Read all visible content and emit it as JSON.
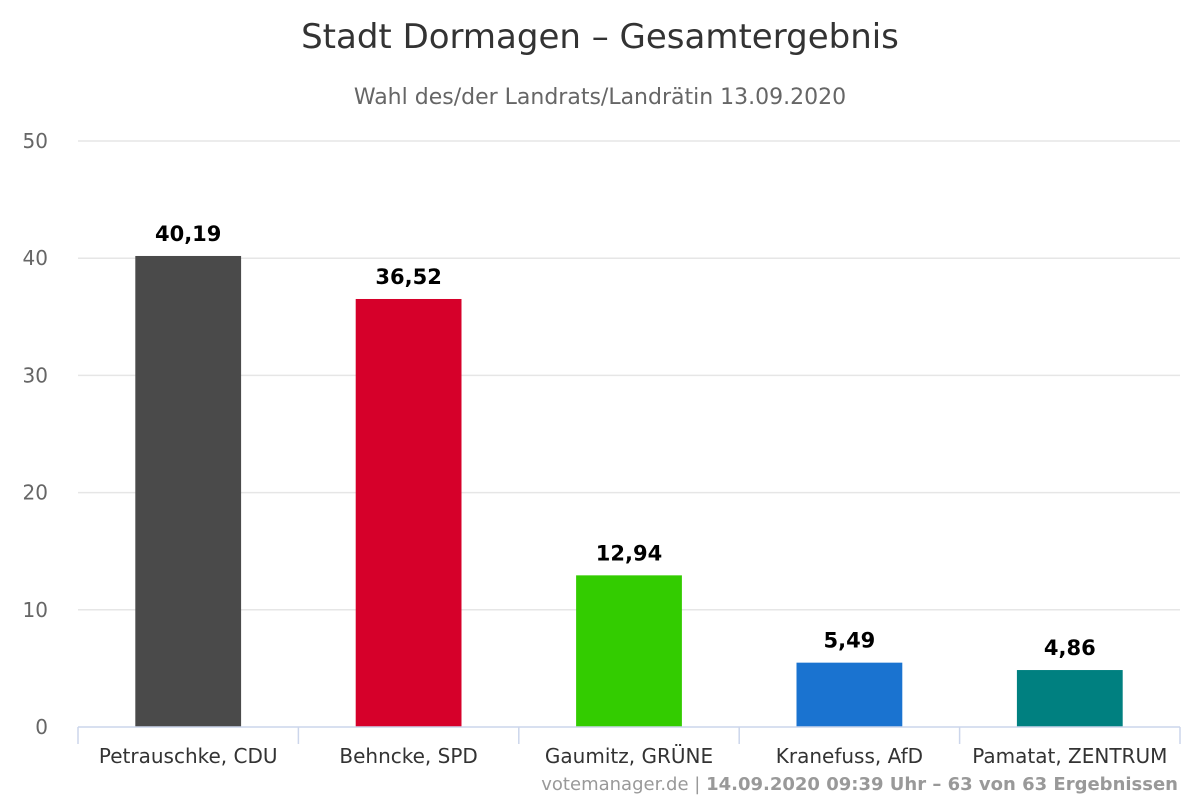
{
  "chart_data": {
    "type": "bar",
    "title": "Stadt Dormagen – Gesamtergebnis",
    "subtitle": "Wahl des/der Landrats/Landrätin 13.09.2020",
    "categories": [
      "Petrauschke, CDU",
      "Behncke, SPD",
      "Gaumitz, GRÜNE",
      "Kranefuss, AfD",
      "Pamatat, ZENTRUM"
    ],
    "values": [
      40.19,
      36.52,
      12.94,
      5.49,
      4.86
    ],
    "value_labels": [
      "40,19",
      "36,52",
      "12,94",
      "5,49",
      "4,86"
    ],
    "colors": [
      "#4a4a4a",
      "#d6002a",
      "#33cc00",
      "#1a73d0",
      "#008080"
    ],
    "ylim": [
      0,
      50
    ],
    "yticks": [
      0,
      10,
      20,
      30,
      40,
      50
    ],
    "grid": true,
    "xlabel": "",
    "ylabel": ""
  },
  "credits": {
    "source": "votemanager.de",
    "separator": " | ",
    "detail": "14.09.2020 09:39 Uhr – 63 von 63 Ergebnissen"
  }
}
